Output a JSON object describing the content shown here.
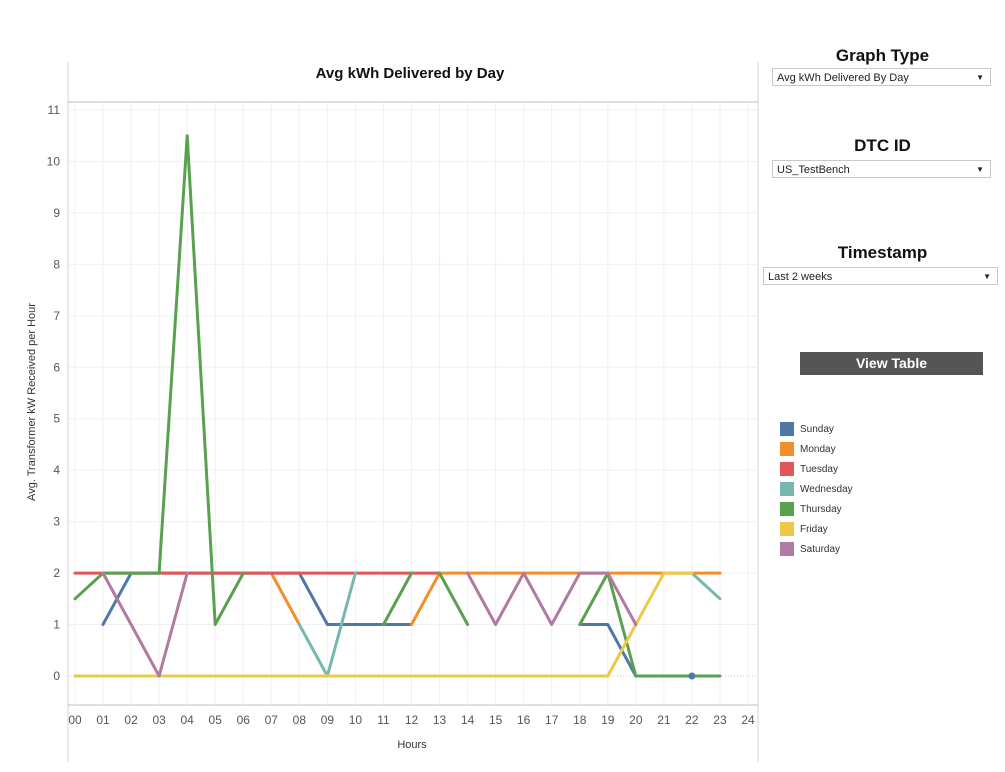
{
  "chart_data": {
    "type": "line",
    "title": "Avg kWh Delivered by Day",
    "xlabel": "Hours",
    "ylabel": "Avg. Transformer kW Received per Hour",
    "ylim": [
      0,
      11
    ],
    "xlim": [
      0,
      24
    ],
    "x_tick_labels": [
      "00",
      "01",
      "02",
      "03",
      "04",
      "05",
      "06",
      "07",
      "08",
      "09",
      "10",
      "11",
      "12",
      "13",
      "14",
      "15",
      "16",
      "17",
      "18",
      "19",
      "20",
      "21",
      "22",
      "23",
      "24"
    ],
    "y_ticks": [
      0,
      1,
      2,
      3,
      4,
      5,
      6,
      7,
      8,
      9,
      10,
      11
    ],
    "grid": true,
    "legend_position": "right",
    "series": [
      {
        "name": "Sunday",
        "color": "#4e79a7",
        "points": [
          [
            1,
            1
          ],
          [
            2,
            2
          ],
          [
            3,
            2
          ],
          [
            4,
            2
          ],
          [
            5,
            2
          ],
          [
            6,
            2
          ],
          [
            7,
            2
          ],
          [
            8,
            2
          ],
          [
            9,
            1
          ],
          [
            10,
            1
          ],
          [
            11,
            1
          ],
          [
            12,
            1
          ]
        ]
      },
      {
        "name": "Sunday",
        "color": "#4e79a7",
        "points": [
          [
            18,
            1
          ],
          [
            19,
            1
          ],
          [
            20,
            0
          ],
          [
            21,
            0
          ],
          [
            22,
            0
          ]
        ]
      },
      {
        "name": "Monday",
        "color": "#f28e2b",
        "points": [
          [
            7,
            2
          ],
          [
            8,
            1
          ]
        ]
      },
      {
        "name": "Monday",
        "color": "#f28e2b",
        "points": [
          [
            12,
            1
          ],
          [
            13,
            2
          ],
          [
            14,
            2
          ],
          [
            15,
            2
          ],
          [
            16,
            2
          ],
          [
            17,
            2
          ],
          [
            18,
            2
          ],
          [
            19,
            2
          ],
          [
            20,
            2
          ],
          [
            21,
            2
          ],
          [
            22,
            2
          ],
          [
            23,
            2
          ]
        ]
      },
      {
        "name": "Tuesday",
        "color": "#e15759",
        "points": [
          [
            0,
            2
          ],
          [
            1,
            2
          ],
          [
            2,
            2
          ],
          [
            3,
            2
          ],
          [
            4,
            2
          ],
          [
            5,
            2
          ],
          [
            6,
            2
          ],
          [
            7,
            2
          ],
          [
            8,
            2
          ],
          [
            9,
            2
          ],
          [
            10,
            2
          ],
          [
            11,
            2
          ],
          [
            12,
            2
          ],
          [
            13,
            2
          ]
        ]
      },
      {
        "name": "Wednesday",
        "color": "#76b7b2",
        "points": [
          [
            8,
            1
          ],
          [
            9,
            0
          ],
          [
            10,
            2
          ]
        ]
      },
      {
        "name": "Wednesday",
        "color": "#76b7b2",
        "points": [
          [
            22,
            2
          ],
          [
            23,
            1.5
          ]
        ]
      },
      {
        "name": "Thursday",
        "color": "#59a14f",
        "points": [
          [
            0,
            1.5
          ],
          [
            1,
            2
          ],
          [
            2,
            2
          ],
          [
            3,
            2
          ],
          [
            4,
            10.5
          ],
          [
            5,
            1
          ],
          [
            6,
            2
          ]
        ]
      },
      {
        "name": "Thursday",
        "color": "#59a14f",
        "points": [
          [
            11,
            1
          ],
          [
            12,
            2
          ]
        ]
      },
      {
        "name": "Thursday",
        "color": "#59a14f",
        "points": [
          [
            13,
            2
          ],
          [
            14,
            1
          ]
        ]
      },
      {
        "name": "Thursday",
        "color": "#59a14f",
        "points": [
          [
            18,
            1
          ],
          [
            19,
            2
          ],
          [
            20,
            0
          ],
          [
            21,
            0
          ],
          [
            22,
            0
          ],
          [
            23,
            0
          ]
        ]
      },
      {
        "name": "Friday",
        "color": "#edc948",
        "points": [
          [
            0,
            0
          ],
          [
            1,
            0
          ],
          [
            2,
            0
          ],
          [
            3,
            0
          ],
          [
            4,
            0
          ],
          [
            5,
            0
          ],
          [
            6,
            0
          ],
          [
            7,
            0
          ],
          [
            8,
            0
          ],
          [
            9,
            0
          ],
          [
            10,
            0
          ],
          [
            11,
            0
          ],
          [
            12,
            0
          ],
          [
            13,
            0
          ],
          [
            14,
            0
          ],
          [
            15,
            0
          ],
          [
            16,
            0
          ],
          [
            17,
            0
          ],
          [
            18,
            0
          ],
          [
            19,
            0
          ],
          [
            20,
            1
          ],
          [
            21,
            2
          ],
          [
            22,
            2
          ]
        ]
      },
      {
        "name": "Saturday",
        "color": "#b07aa1",
        "points": [
          [
            1,
            2
          ],
          [
            2,
            1
          ],
          [
            3,
            0
          ],
          [
            4,
            2
          ]
        ]
      },
      {
        "name": "Saturday",
        "color": "#b07aa1",
        "points": [
          [
            14,
            2
          ],
          [
            15,
            1
          ],
          [
            16,
            2
          ],
          [
            17,
            1
          ],
          [
            18,
            2
          ],
          [
            19,
            2
          ],
          [
            20,
            1
          ]
        ]
      }
    ],
    "markers": [
      {
        "series": "Sunday",
        "color": "#4e79a7",
        "x": 22,
        "y": 0
      }
    ]
  },
  "controls": {
    "graph_type": {
      "title": "Graph Type",
      "value": "Avg kWh Delivered By Day"
    },
    "dtc_id": {
      "title": "DTC ID",
      "value": "US_TestBench"
    },
    "timestamp": {
      "title": "Timestamp",
      "value": "Last 2 weeks"
    },
    "view_table_label": "View Table"
  },
  "legend": [
    {
      "label": "Sunday",
      "color": "#4e79a7"
    },
    {
      "label": "Monday",
      "color": "#f28e2b"
    },
    {
      "label": "Tuesday",
      "color": "#e15759"
    },
    {
      "label": "Wednesday",
      "color": "#76b7b2"
    },
    {
      "label": "Thursday",
      "color": "#59a14f"
    },
    {
      "label": "Friday",
      "color": "#edc948"
    },
    {
      "label": "Saturday",
      "color": "#b07aa1"
    }
  ]
}
